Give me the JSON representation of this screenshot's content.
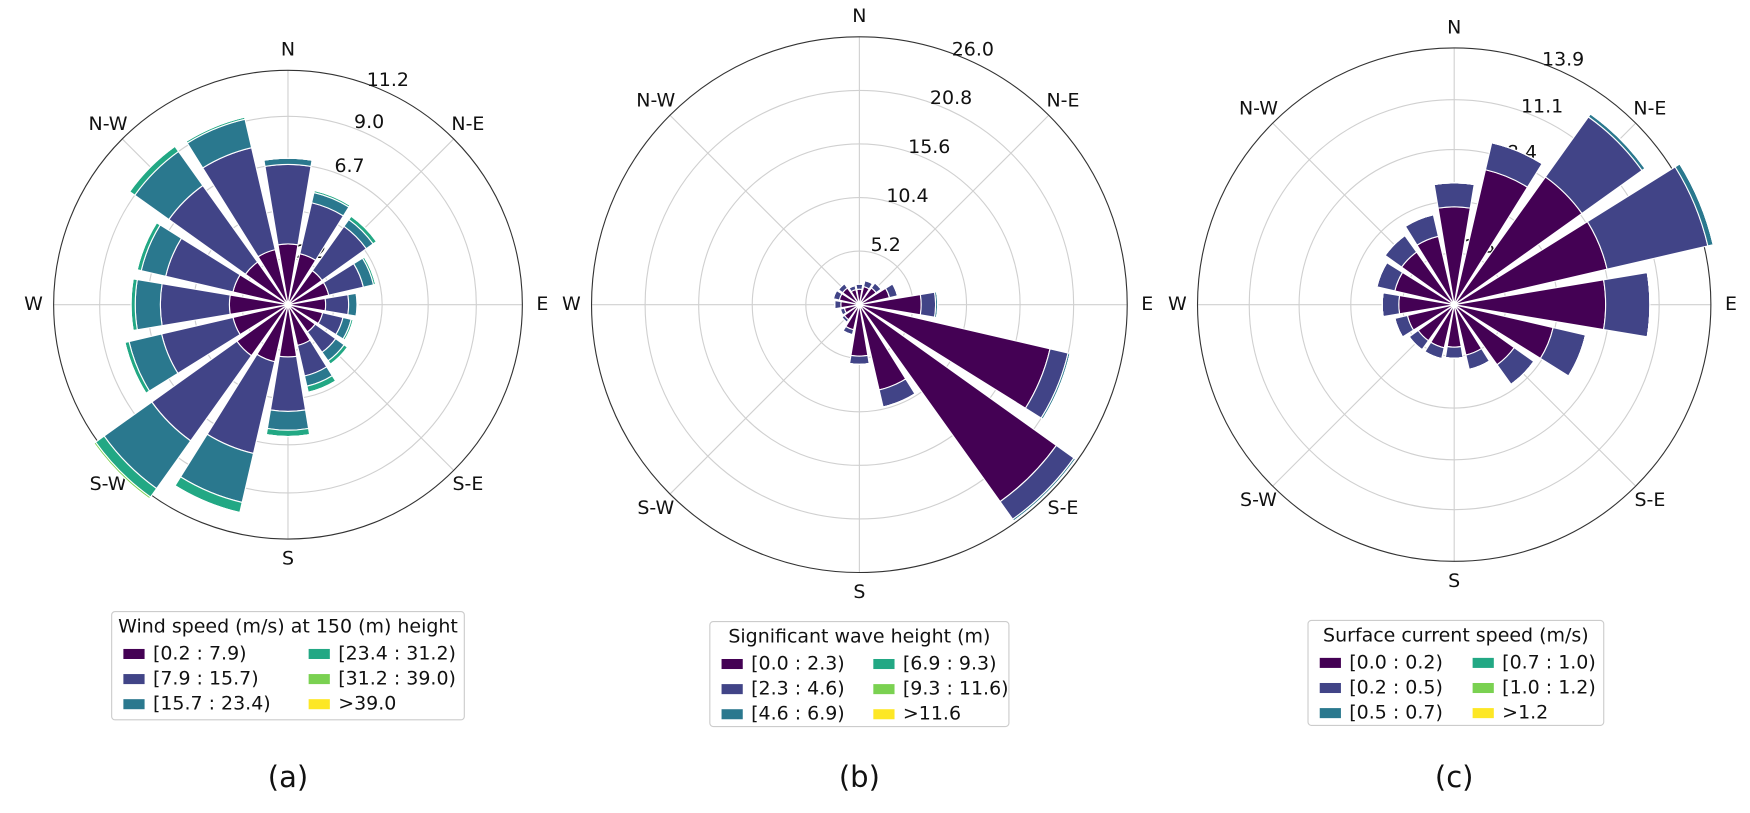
{
  "chart_data": [
    {
      "type": "windrose",
      "caption": "(a)",
      "legend_title": "Wind speed (m/s) at 150 (m) height",
      "categories": [
        "N",
        null,
        "N-E",
        null,
        "E",
        null,
        "S-E",
        null,
        "S",
        null,
        "S-W",
        null,
        "W",
        null,
        "N-W",
        null
      ],
      "ylim": [
        0,
        11.2
      ],
      "yticks": [
        2.2,
        4.5,
        6.7,
        {
          "value": 9,
          "label": "9.0"
        },
        11.2
      ],
      "grid": true,
      "series": [
        {
          "name": "[0.2 : 7.9)",
          "color": "#440154",
          "values": [
            2.9,
            2.5,
            2.0,
            2.0,
            1.8,
            1.7,
            1.6,
            2.0,
            2.5,
            2.8,
            3.0,
            2.7,
            2.8,
            2.7,
            2.5,
            2.7
          ]
        },
        {
          "name": "[7.9 : 15.7)",
          "color": "#414487",
          "values": [
            3.8,
            2.5,
            2.6,
            1.7,
            1.1,
            1.0,
            1.2,
            1.5,
            2.6,
            4.5,
            5.0,
            3.5,
            3.3,
            3.3,
            4.5,
            5.0
          ]
        },
        {
          "name": "[15.7 : 23.4)",
          "color": "#2a788e",
          "values": [
            0.3,
            0.5,
            0.4,
            0.5,
            0.4,
            0.4,
            0.5,
            0.5,
            0.9,
            2.4,
            2.8,
            1.6,
            1.2,
            1.2,
            2.0,
            1.4
          ]
        },
        {
          "name": "[23.4 : 31.2)",
          "color": "#22a884",
          "values": [
            0,
            0.1,
            0.2,
            0.1,
            0.05,
            0.1,
            0.2,
            0.3,
            0.3,
            0.5,
            0.5,
            0.2,
            0.2,
            0.2,
            0.3,
            0.1
          ]
        },
        {
          "name": "[31.2 : 39.0)",
          "color": "#7ad151",
          "values": [
            0,
            0,
            0,
            0,
            0,
            0,
            0,
            0,
            0,
            0,
            0.1,
            0,
            0,
            0,
            0,
            0
          ]
        },
        {
          "name": ">39.0",
          "color": "#fde725",
          "values": [
            0,
            0,
            0,
            0,
            0,
            0,
            0,
            0,
            0,
            0,
            0,
            0,
            0,
            0,
            0,
            0
          ]
        }
      ]
    },
    {
      "type": "windrose",
      "caption": "(b)",
      "legend_title": "Significant wave height (m)",
      "categories": [
        "N",
        null,
        "N-E",
        null,
        "E",
        null,
        "S-E",
        null,
        "S",
        null,
        "S-W",
        null,
        "W",
        null,
        "N-W",
        null
      ],
      "ylim": [
        0,
        26
      ],
      "yticks": [
        5.2,
        10.4,
        15.6,
        20.8,
        {
          "value": 26,
          "label": "26.0"
        }
      ],
      "grid": true,
      "series": [
        {
          "name": "[0.0 : 2.3)",
          "color": "#440154",
          "values": [
            1.5,
            1.8,
            2.0,
            3.0,
            6.0,
            19.0,
            23.5,
            8.5,
            5.0,
            2.5,
            1.8,
            1.5,
            1.8,
            2.0,
            2.0,
            1.5
          ]
        },
        {
          "name": "[2.3 : 4.6)",
          "color": "#414487",
          "values": [
            0.5,
            0.6,
            0.6,
            0.8,
            1.4,
            1.8,
            2.1,
            1.7,
            0.8,
            0.5,
            0.3,
            0.4,
            0.6,
            0.6,
            0.5,
            0.4
          ]
        },
        {
          "name": "[4.6 : 6.9)",
          "color": "#2a788e",
          "values": [
            0,
            0,
            0,
            0,
            0.2,
            0.2,
            0.2,
            0,
            0,
            0,
            0,
            0,
            0,
            0,
            0,
            0
          ]
        },
        {
          "name": "[6.9 : 9.3)",
          "color": "#22a884",
          "values": [
            0,
            0,
            0,
            0,
            0,
            0,
            0,
            0,
            0,
            0,
            0,
            0,
            0,
            0,
            0,
            0
          ]
        },
        {
          "name": "[9.3 : 11.6)",
          "color": "#7ad151",
          "values": [
            0,
            0,
            0,
            0,
            0,
            0,
            0,
            0,
            0,
            0,
            0,
            0,
            0,
            0,
            0,
            0
          ]
        },
        {
          "name": ">11.6",
          "color": "#fde725",
          "values": [
            0,
            0,
            0,
            0,
            0,
            0,
            0,
            0,
            0,
            0,
            0,
            0,
            0,
            0,
            0,
            0
          ]
        }
      ]
    },
    {
      "type": "windrose",
      "caption": "(c)",
      "legend_title": "Surface current speed (m/s)",
      "categories": [
        "N",
        null,
        "N-E",
        null,
        "E",
        null,
        "S-E",
        null,
        "S",
        null,
        "S-W",
        null,
        "W",
        null,
        "N-W",
        null
      ],
      "ylim": [
        0,
        13.9
      ],
      "yticks": [
        2.8,
        5.6,
        8.4,
        11.1,
        13.9
      ],
      "grid": true,
      "series": [
        {
          "name": "[0.0 : 0.2)",
          "color": "#440154",
          "values": [
            5.3,
            7.5,
            8.5,
            8.5,
            8.2,
            5.5,
            4.0,
            2.8,
            2.3,
            2.4,
            2.4,
            2.6,
            3.0,
            3.3,
            3.5,
            3.8
          ]
        },
        {
          "name": "[0.2 : 0.5)",
          "color": "#414487",
          "values": [
            1.3,
            1.5,
            4.0,
            5.6,
            2.4,
            1.8,
            1.3,
            0.8,
            0.6,
            0.6,
            0.6,
            0.7,
            0.9,
            1.0,
            1.1,
            1.2
          ]
        },
        {
          "name": "[0.5 : 0.7)",
          "color": "#2a788e",
          "values": [
            0,
            0,
            0.2,
            0.3,
            0,
            0,
            0,
            0,
            0,
            0,
            0,
            0,
            0,
            0,
            0,
            0
          ]
        },
        {
          "name": "[0.7 : 1.0)",
          "color": "#22a884",
          "values": [
            0,
            0,
            0,
            0,
            0,
            0,
            0,
            0,
            0,
            0,
            0,
            0,
            0,
            0,
            0,
            0
          ]
        },
        {
          "name": "[1.0 : 1.2)",
          "color": "#7ad151",
          "values": [
            0,
            0,
            0,
            0,
            0,
            0,
            0,
            0,
            0,
            0,
            0,
            0,
            0,
            0,
            0,
            0
          ]
        },
        {
          "name": ">1.2",
          "color": "#fde725",
          "values": [
            0,
            0,
            0,
            0,
            0,
            0,
            0,
            0,
            0,
            0,
            0,
            0,
            0,
            0,
            0,
            0
          ]
        }
      ]
    }
  ]
}
